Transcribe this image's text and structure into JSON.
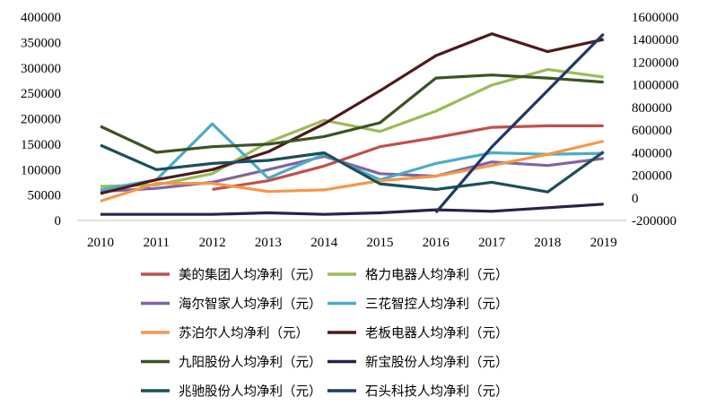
{
  "chart_data": {
    "type": "line",
    "title": "",
    "xlabel": "",
    "ylabel": "",
    "x": [
      "2010",
      "2011",
      "2012",
      "2013",
      "2014",
      "2015",
      "2016",
      "2017",
      "2018",
      "2019"
    ],
    "y_left": {
      "ylim": [
        0,
        400000
      ],
      "ticks": [
        "0",
        "50000",
        "100000",
        "150000",
        "200000",
        "250000",
        "300000",
        "350000",
        "400000"
      ]
    },
    "y_right": {
      "ylim": [
        -200000,
        1600000
      ],
      "ticks": [
        "-200000",
        "0",
        "200000",
        "400000",
        "600000",
        "800000",
        "1000000",
        "1200000",
        "1400000",
        "1600000"
      ]
    },
    "grid": false,
    "legend_position": "bottom",
    "series": [
      {
        "name": "美的集团人均净利（元）",
        "color": "#c0504d",
        "axis": "left",
        "values": [
          null,
          null,
          61000,
          78000,
          107000,
          145000,
          163000,
          183000,
          186000,
          186000
        ]
      },
      {
        "name": "格力电器人均净利（元）",
        "color": "#9bbb59",
        "axis": "left",
        "values": [
          67000,
          70000,
          92000,
          154000,
          197000,
          175000,
          215000,
          266000,
          297000,
          282000
        ]
      },
      {
        "name": "海尔智家人均净利（元）",
        "color": "#8064a2",
        "axis": "left",
        "values": [
          57000,
          63000,
          75000,
          100000,
          126000,
          92000,
          87000,
          115000,
          108000,
          122000
        ]
      },
      {
        "name": "三花智控人均净利（元）",
        "color": "#4bacc6",
        "axis": "left",
        "values": [
          60000,
          80000,
          190000,
          83000,
          130000,
          80000,
          112000,
          133000,
          130000,
          132000
        ]
      },
      {
        "name": "苏泊尔人均净利（元）",
        "color": "#f79646",
        "axis": "left",
        "values": [
          38000,
          73000,
          73000,
          57000,
          60000,
          78000,
          87000,
          108000,
          130000,
          156000
        ]
      },
      {
        "name": "老板电器人均净利（元）",
        "color": "#4f1a1a",
        "axis": "left",
        "values": [
          53000,
          80000,
          100000,
          135000,
          190000,
          255000,
          324000,
          367000,
          332000,
          356000
        ]
      },
      {
        "name": "九阳股份人均净利（元）",
        "color": "#3b5323",
        "axis": "left",
        "values": [
          185000,
          134000,
          145000,
          150000,
          165000,
          192000,
          280000,
          286000,
          280000,
          272000
        ]
      },
      {
        "name": "新宝股份人均净利（元）",
        "color": "#2e1f4a",
        "axis": "left",
        "values": [
          12000,
          12000,
          12000,
          15000,
          12000,
          15000,
          21000,
          18000,
          25000,
          32000
        ]
      },
      {
        "name": "兆驰股份人均净利（元）",
        "color": "#1b4f5a",
        "axis": "left",
        "values": [
          148000,
          100000,
          112000,
          118000,
          133000,
          72000,
          61000,
          75000,
          56000,
          135000
        ]
      },
      {
        "name": "石头科技人均净利（元）",
        "color": "#1f3864",
        "axis": "right",
        "values": [
          null,
          null,
          null,
          null,
          null,
          null,
          -130000,
          450000,
          950000,
          1450000
        ]
      }
    ]
  }
}
